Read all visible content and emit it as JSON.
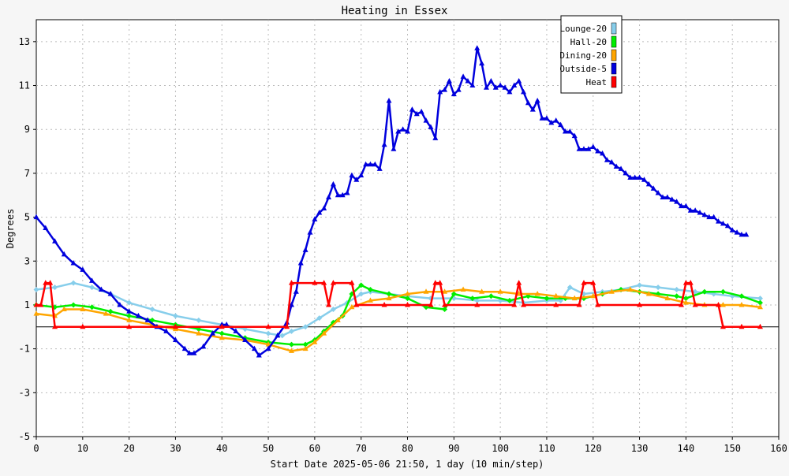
{
  "chart_data": {
    "type": "line",
    "title": "Heating in Essex",
    "xlabel": "Start Date 2025-05-06 21:50, 1 day (10 min/step)",
    "ylabel": "Degrees",
    "xlim": [
      0,
      160
    ],
    "ylim": [
      -5,
      14
    ],
    "x_ticks": [
      0,
      10,
      20,
      30,
      40,
      50,
      60,
      70,
      80,
      90,
      100,
      110,
      120,
      130,
      140,
      150,
      160
    ],
    "y_ticks": [
      -5,
      -3,
      -1,
      1,
      3,
      5,
      7,
      9,
      11,
      13
    ],
    "grid": true,
    "zero_line": true,
    "legend_position": "top-right",
    "series": [
      {
        "name": "Lounge-20",
        "color": "#87ceeb",
        "marker": "diamond",
        "points": [
          [
            0,
            1.7
          ],
          [
            4,
            1.8
          ],
          [
            8,
            2.0
          ],
          [
            12,
            1.8
          ],
          [
            16,
            1.5
          ],
          [
            20,
            1.1
          ],
          [
            25,
            0.8
          ],
          [
            30,
            0.5
          ],
          [
            35,
            0.3
          ],
          [
            40,
            0.1
          ],
          [
            45,
            -0.1
          ],
          [
            50,
            -0.3
          ],
          [
            53,
            -0.4
          ],
          [
            55,
            -0.2
          ],
          [
            58,
            0.0
          ],
          [
            61,
            0.4
          ],
          [
            64,
            0.8
          ],
          [
            67,
            1.1
          ],
          [
            70,
            1.5
          ],
          [
            72,
            1.6
          ],
          [
            76,
            1.5
          ],
          [
            80,
            1.4
          ],
          [
            85,
            1.3
          ],
          [
            90,
            1.3
          ],
          [
            95,
            1.2
          ],
          [
            100,
            1.2
          ],
          [
            105,
            1.1
          ],
          [
            110,
            1.2
          ],
          [
            113,
            1.2
          ],
          [
            115,
            1.8
          ],
          [
            118,
            1.5
          ],
          [
            122,
            1.6
          ],
          [
            126,
            1.7
          ],
          [
            130,
            1.9
          ],
          [
            134,
            1.8
          ],
          [
            138,
            1.7
          ],
          [
            142,
            1.6
          ],
          [
            146,
            1.5
          ],
          [
            150,
            1.4
          ],
          [
            156,
            1.3
          ]
        ]
      },
      {
        "name": "Hall-20",
        "color": "#00ee00",
        "marker": "diamond",
        "points": [
          [
            0,
            1.0
          ],
          [
            4,
            0.9
          ],
          [
            8,
            1.0
          ],
          [
            12,
            0.9
          ],
          [
            16,
            0.7
          ],
          [
            20,
            0.5
          ],
          [
            25,
            0.3
          ],
          [
            30,
            0.1
          ],
          [
            35,
            -0.1
          ],
          [
            40,
            -0.3
          ],
          [
            45,
            -0.5
          ],
          [
            50,
            -0.7
          ],
          [
            55,
            -0.8
          ],
          [
            58,
            -0.8
          ],
          [
            60,
            -0.6
          ],
          [
            62,
            -0.2
          ],
          [
            64,
            0.2
          ],
          [
            66,
            0.5
          ],
          [
            68,
            1.5
          ],
          [
            70,
            1.9
          ],
          [
            72,
            1.7
          ],
          [
            76,
            1.5
          ],
          [
            80,
            1.3
          ],
          [
            84,
            0.9
          ],
          [
            88,
            0.8
          ],
          [
            90,
            1.5
          ],
          [
            94,
            1.3
          ],
          [
            98,
            1.4
          ],
          [
            102,
            1.2
          ],
          [
            106,
            1.4
          ],
          [
            110,
            1.3
          ],
          [
            114,
            1.3
          ],
          [
            118,
            1.3
          ],
          [
            122,
            1.5
          ],
          [
            126,
            1.7
          ],
          [
            130,
            1.6
          ],
          [
            134,
            1.5
          ],
          [
            138,
            1.4
          ],
          [
            140,
            1.3
          ],
          [
            144,
            1.6
          ],
          [
            148,
            1.6
          ],
          [
            152,
            1.4
          ],
          [
            156,
            1.1
          ]
        ]
      },
      {
        "name": "Dining-20",
        "color": "#ffa500",
        "marker": "triangle",
        "points": [
          [
            0,
            0.6
          ],
          [
            4,
            0.5
          ],
          [
            6,
            0.8
          ],
          [
            10,
            0.8
          ],
          [
            15,
            0.6
          ],
          [
            20,
            0.3
          ],
          [
            25,
            0.1
          ],
          [
            30,
            -0.1
          ],
          [
            35,
            -0.3
          ],
          [
            40,
            -0.5
          ],
          [
            45,
            -0.6
          ],
          [
            50,
            -0.8
          ],
          [
            55,
            -1.1
          ],
          [
            58,
            -1.0
          ],
          [
            60,
            -0.7
          ],
          [
            62,
            -0.3
          ],
          [
            65,
            0.3
          ],
          [
            68,
            0.9
          ],
          [
            72,
            1.2
          ],
          [
            76,
            1.3
          ],
          [
            80,
            1.5
          ],
          [
            84,
            1.6
          ],
          [
            88,
            1.6
          ],
          [
            92,
            1.7
          ],
          [
            96,
            1.6
          ],
          [
            100,
            1.6
          ],
          [
            104,
            1.5
          ],
          [
            108,
            1.5
          ],
          [
            112,
            1.4
          ],
          [
            116,
            1.3
          ],
          [
            120,
            1.4
          ],
          [
            124,
            1.6
          ],
          [
            128,
            1.7
          ],
          [
            132,
            1.5
          ],
          [
            136,
            1.3
          ],
          [
            140,
            1.1
          ],
          [
            144,
            1.0
          ],
          [
            148,
            1.0
          ],
          [
            152,
            1.0
          ],
          [
            156,
            0.9
          ]
        ]
      },
      {
        "name": "Outside-5",
        "color": "#0000dd",
        "marker": "triangle",
        "points": [
          [
            0,
            5.0
          ],
          [
            2,
            4.5
          ],
          [
            4,
            3.9
          ],
          [
            6,
            3.3
          ],
          [
            8,
            2.9
          ],
          [
            10,
            2.6
          ],
          [
            12,
            2.1
          ],
          [
            14,
            1.7
          ],
          [
            16,
            1.5
          ],
          [
            18,
            1.0
          ],
          [
            20,
            0.7
          ],
          [
            22,
            0.5
          ],
          [
            24,
            0.3
          ],
          [
            26,
            0.0
          ],
          [
            28,
            -0.2
          ],
          [
            30,
            -0.6
          ],
          [
            32,
            -1.0
          ],
          [
            33,
            -1.2
          ],
          [
            34,
            -1.2
          ],
          [
            36,
            -0.9
          ],
          [
            38,
            -0.3
          ],
          [
            40,
            0.1
          ],
          [
            41,
            0.1
          ],
          [
            43,
            -0.2
          ],
          [
            45,
            -0.6
          ],
          [
            47,
            -1.0
          ],
          [
            48,
            -1.3
          ],
          [
            50,
            -1.0
          ],
          [
            52,
            -0.4
          ],
          [
            54,
            0.2
          ],
          [
            55,
            1.0
          ],
          [
            56,
            1.6
          ],
          [
            57,
            2.9
          ],
          [
            58,
            3.5
          ],
          [
            59,
            4.3
          ],
          [
            60,
            4.9
          ],
          [
            61,
            5.2
          ],
          [
            62,
            5.4
          ],
          [
            63,
            5.9
          ],
          [
            64,
            6.5
          ],
          [
            65,
            6.0
          ],
          [
            66,
            6.0
          ],
          [
            67,
            6.1
          ],
          [
            68,
            6.9
          ],
          [
            69,
            6.7
          ],
          [
            70,
            6.9
          ],
          [
            71,
            7.4
          ],
          [
            72,
            7.4
          ],
          [
            73,
            7.4
          ],
          [
            74,
            7.2
          ],
          [
            75,
            8.3
          ],
          [
            76,
            10.3
          ],
          [
            77,
            8.1
          ],
          [
            78,
            8.9
          ],
          [
            79,
            9.0
          ],
          [
            80,
            8.9
          ],
          [
            81,
            9.9
          ],
          [
            82,
            9.7
          ],
          [
            83,
            9.8
          ],
          [
            84,
            9.4
          ],
          [
            85,
            9.1
          ],
          [
            86,
            8.6
          ],
          [
            87,
            10.7
          ],
          [
            88,
            10.8
          ],
          [
            89,
            11.2
          ],
          [
            90,
            10.6
          ],
          [
            91,
            10.8
          ],
          [
            92,
            11.4
          ],
          [
            93,
            11.2
          ],
          [
            94,
            11.0
          ],
          [
            95,
            12.7
          ],
          [
            96,
            12.0
          ],
          [
            97,
            10.9
          ],
          [
            98,
            11.2
          ],
          [
            99,
            10.9
          ],
          [
            100,
            11.0
          ],
          [
            101,
            10.9
          ],
          [
            102,
            10.7
          ],
          [
            103,
            11.0
          ],
          [
            104,
            11.2
          ],
          [
            105,
            10.7
          ],
          [
            106,
            10.2
          ],
          [
            107,
            9.9
          ],
          [
            108,
            10.3
          ],
          [
            109,
            9.5
          ],
          [
            110,
            9.5
          ],
          [
            111,
            9.3
          ],
          [
            112,
            9.4
          ],
          [
            113,
            9.2
          ],
          [
            114,
            8.9
          ],
          [
            115,
            8.9
          ],
          [
            116,
            8.7
          ],
          [
            117,
            8.1
          ],
          [
            118,
            8.1
          ],
          [
            119,
            8.1
          ],
          [
            120,
            8.2
          ],
          [
            121,
            8.0
          ],
          [
            122,
            7.9
          ],
          [
            123,
            7.6
          ],
          [
            124,
            7.5
          ],
          [
            125,
            7.3
          ],
          [
            126,
            7.2
          ],
          [
            127,
            7.0
          ],
          [
            128,
            6.8
          ],
          [
            129,
            6.8
          ],
          [
            130,
            6.8
          ],
          [
            131,
            6.7
          ],
          [
            132,
            6.5
          ],
          [
            133,
            6.3
          ],
          [
            134,
            6.1
          ],
          [
            135,
            5.9
          ],
          [
            136,
            5.9
          ],
          [
            137,
            5.8
          ],
          [
            138,
            5.7
          ],
          [
            139,
            5.5
          ],
          [
            140,
            5.5
          ],
          [
            141,
            5.3
          ],
          [
            142,
            5.3
          ],
          [
            143,
            5.2
          ],
          [
            144,
            5.1
          ],
          [
            145,
            5.0
          ],
          [
            146,
            5.0
          ],
          [
            147,
            4.8
          ],
          [
            148,
            4.7
          ],
          [
            149,
            4.6
          ],
          [
            150,
            4.4
          ],
          [
            151,
            4.3
          ],
          [
            152,
            4.2
          ],
          [
            153,
            4.2
          ]
        ]
      },
      {
        "name": "Heat",
        "color": "#ff0000",
        "marker": "triangle",
        "points": [
          [
            0,
            1.0
          ],
          [
            1,
            1.0
          ],
          [
            2,
            2.0
          ],
          [
            3,
            2.0
          ],
          [
            4,
            0.0
          ],
          [
            10,
            0.0
          ],
          [
            20,
            0.0
          ],
          [
            30,
            0.0
          ],
          [
            40,
            0.0
          ],
          [
            50,
            0.0
          ],
          [
            54,
            0.0
          ],
          [
            55,
            2.0
          ],
          [
            60,
            2.0
          ],
          [
            62,
            2.0
          ],
          [
            63,
            1.0
          ],
          [
            64,
            2.0
          ],
          [
            68,
            2.0
          ],
          [
            69,
            1.0
          ],
          [
            75,
            1.0
          ],
          [
            80,
            1.0
          ],
          [
            85,
            1.0
          ],
          [
            86,
            2.0
          ],
          [
            87,
            2.0
          ],
          [
            88,
            1.0
          ],
          [
            95,
            1.0
          ],
          [
            103,
            1.0
          ],
          [
            104,
            2.0
          ],
          [
            105,
            1.0
          ],
          [
            112,
            1.0
          ],
          [
            117,
            1.0
          ],
          [
            118,
            2.0
          ],
          [
            120,
            2.0
          ],
          [
            121,
            1.0
          ],
          [
            130,
            1.0
          ],
          [
            139,
            1.0
          ],
          [
            140,
            2.0
          ],
          [
            141,
            2.0
          ],
          [
            142,
            1.0
          ],
          [
            147,
            1.0
          ],
          [
            148,
            0.0
          ],
          [
            152,
            0.0
          ],
          [
            156,
            0.0
          ]
        ]
      }
    ]
  }
}
